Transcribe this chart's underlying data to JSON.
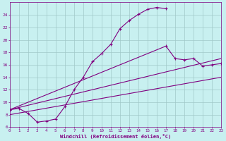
{
  "bg_color": "#c8f0f0",
  "grid_color": "#a0c8c8",
  "line_color": "#800080",
  "xlabel": "Windchill (Refroidissement éolien,°C)",
  "tick_color": "#800080",
  "xlim": [
    0,
    23
  ],
  "ylim": [
    6,
    26
  ],
  "yticks": [
    6,
    8,
    10,
    12,
    14,
    16,
    18,
    20,
    22,
    24
  ],
  "xticks": [
    0,
    1,
    2,
    3,
    4,
    5,
    6,
    7,
    8,
    9,
    10,
    11,
    12,
    13,
    14,
    15,
    16,
    17,
    18,
    19,
    20,
    21,
    22,
    23
  ],
  "curve1_x": [
    0,
    1,
    2,
    3,
    4,
    5,
    6,
    7,
    8,
    9,
    10,
    11,
    12,
    13,
    14,
    15,
    16,
    17
  ],
  "curve1_y": [
    8.8,
    9.0,
    8.2,
    6.8,
    7.0,
    7.3,
    9.3,
    12.0,
    14.0,
    16.5,
    17.8,
    19.3,
    21.8,
    23.1,
    24.1,
    24.9,
    25.2,
    25.0
  ],
  "curve2_x": [
    0,
    17,
    18,
    19,
    20,
    21,
    22,
    23
  ],
  "curve2_y": [
    8.8,
    19.0,
    17.0,
    16.8,
    17.0,
    15.8,
    16.0,
    16.2
  ],
  "curve3_x": [
    0,
    23
  ],
  "curve3_y": [
    8.8,
    17.0
  ],
  "curve4_x": [
    0,
    23
  ],
  "curve4_y": [
    8.0,
    14.0
  ]
}
